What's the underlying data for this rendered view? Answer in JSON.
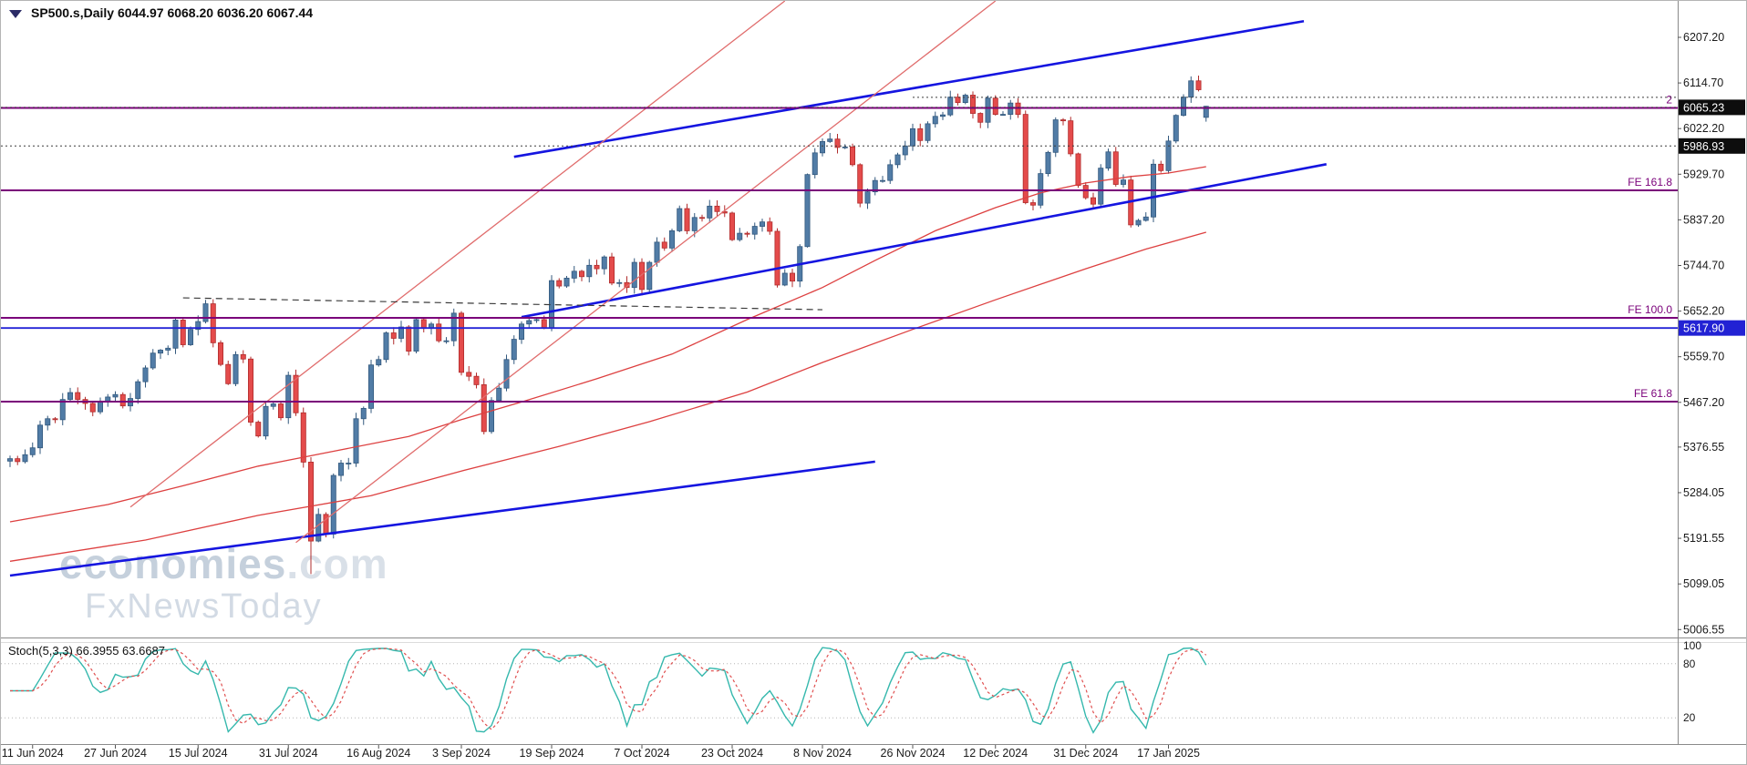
{
  "header": {
    "symbol_line": "SP500.s,Daily 6044.97 6068.20 6036.20 6067.44"
  },
  "watermark": {
    "brand": "economies",
    "brand_suffix": ".com",
    "subtitle": "FxNewsToday"
  },
  "stoch_panel": {
    "label": "Stoch(5,3,3) 66.3955 63.6687",
    "axis_labels": [
      "100",
      "80",
      "20"
    ],
    "levels": [
      80,
      20
    ]
  },
  "price_axis": {
    "labels": [
      "6207.20",
      "6114.70",
      "6022.20",
      "5929.70",
      "5837.20",
      "5744.70",
      "5652.20",
      "5559.70",
      "5467.20",
      "5376.55",
      "5284.05",
      "5191.55",
      "5099.05",
      "5006.55"
    ],
    "badges": [
      {
        "text": "6065.23",
        "bg": "#0d0d0d"
      },
      {
        "text": "5986.93",
        "bg": "#0d0d0d"
      },
      {
        "text": "5617.90",
        "bg": "#2222d4"
      }
    ]
  },
  "x_axis": {
    "date_labels": [
      {
        "text": "11 Jun 2024",
        "index": 3
      },
      {
        "text": "27 Jun 2024",
        "index": 14
      },
      {
        "text": "15 Jul 2024",
        "index": 25
      },
      {
        "text": "31 Jul 2024",
        "index": 37
      },
      {
        "text": "16 Aug 2024",
        "index": 49
      },
      {
        "text": "3 Sep 2024",
        "index": 60
      },
      {
        "text": "19 Sep 2024",
        "index": 72
      },
      {
        "text": "7 Oct 2024",
        "index": 84
      },
      {
        "text": "23 Oct 2024",
        "index": 96
      },
      {
        "text": "8 Nov 2024",
        "index": 108
      },
      {
        "text": "26 Nov 2024",
        "index": 120
      },
      {
        "text": "12 Dec 2024",
        "index": 131
      },
      {
        "text": "31 Dec 2024",
        "index": 143
      },
      {
        "text": "17 Jan 2025",
        "index": 154
      }
    ]
  },
  "chart_data": {
    "type": "candlestick",
    "symbol": "SP500.s",
    "timeframe": "Daily",
    "current_ohlc": {
      "open": 6044.97,
      "high": 6068.2,
      "low": 6036.2,
      "close": 6067.44
    },
    "first_open": 5348,
    "closes": [
      5353,
      5347,
      5361,
      5375,
      5421,
      5434,
      5432,
      5473,
      5487,
      5473,
      5465,
      5448,
      5469,
      5478,
      5483,
      5460,
      5475,
      5509,
      5537,
      5567,
      5573,
      5577,
      5634,
      5584,
      5615,
      5631,
      5667,
      5588,
      5544,
      5505,
      5564,
      5555,
      5427,
      5399,
      5459,
      5464,
      5436,
      5522,
      5446,
      5346,
      5186,
      5240,
      5200,
      5319,
      5344,
      5344,
      5434,
      5455,
      5543,
      5554,
      5608,
      5597,
      5620,
      5571,
      5635,
      5617,
      5626,
      5592,
      5592,
      5648,
      5528,
      5520,
      5503,
      5408,
      5471,
      5496,
      5554,
      5595,
      5626,
      5633,
      5635,
      5618,
      5714,
      5703,
      5719,
      5733,
      5722,
      5745,
      5738,
      5762,
      5709,
      5710,
      5700,
      5751,
      5696,
      5751,
      5792,
      5780,
      5815,
      5860,
      5815,
      5842,
      5841,
      5865,
      5854,
      5851,
      5797,
      5810,
      5808,
      5824,
      5833,
      5814,
      5705,
      5729,
      5713,
      5783,
      5929,
      5973,
      5996,
      6001,
      5984,
      5985,
      5949,
      5871,
      5894,
      5917,
      5917,
      5949,
      5969,
      5987,
      6022,
      5998,
      6032,
      6047,
      6050,
      6086,
      6075,
      6090,
      6053,
      6035,
      6084,
      6051,
      6051,
      6074,
      6051,
      5872,
      5867,
      5931,
      5974,
      6040,
      6038,
      5971,
      5907,
      5882,
      5869,
      5942,
      5975,
      5909,
      5918,
      5827,
      5836,
      5843,
      5950,
      5937,
      5997,
      6049,
      6086,
      6119,
      6101,
      6067.44
    ],
    "overrides": {
      "40": {
        "low": 5119
      },
      "157": {
        "high": 6128
      },
      "159": {
        "open": 6044.97,
        "high": 6068.2,
        "low": 6036.2,
        "close": 6067.44
      }
    },
    "trendlines": [
      {
        "name": "trendline-blue-support",
        "color": "#1515e0",
        "width": 2.6,
        "from": [
          0,
          5116
        ],
        "to": [
          115,
          5347
        ]
      },
      {
        "name": "trendline-blue-channel-lower",
        "color": "#1515e0",
        "width": 2.6,
        "from": [
          68,
          5640
        ],
        "to": [
          175,
          5950
        ]
      },
      {
        "name": "trendline-blue-channel-upper",
        "color": "#1515e0",
        "width": 2.6,
        "from": [
          67,
          5965
        ],
        "to": [
          172,
          6240
        ]
      },
      {
        "name": "trendline-red-left",
        "color": "#e06c6c",
        "width": 1.3,
        "from": [
          16,
          5255
        ],
        "to": [
          103,
          6281
        ]
      },
      {
        "name": "trendline-red-right",
        "color": "#e06c6c",
        "width": 1.3,
        "from": [
          38,
          5183
        ],
        "to": [
          131,
          6281
        ]
      },
      {
        "name": "trendline-dashed-resistance",
        "color": "#3a3a3a",
        "width": 1.2,
        "dash": "7 5",
        "from": [
          23,
          5679
        ],
        "to": [
          108,
          5655
        ]
      }
    ],
    "moving_averages": [
      {
        "name": "ma-red-fast",
        "color": "#dd4040",
        "width": 1.3,
        "points": [
          [
            0,
            5225
          ],
          [
            13,
            5260
          ],
          [
            23,
            5298
          ],
          [
            33,
            5338
          ],
          [
            43,
            5368
          ],
          [
            53,
            5398
          ],
          [
            60,
            5432
          ],
          [
            68,
            5468
          ],
          [
            78,
            5515
          ],
          [
            88,
            5565
          ],
          [
            98,
            5635
          ],
          [
            108,
            5700
          ],
          [
            115,
            5755
          ],
          [
            123,
            5815
          ],
          [
            131,
            5862
          ],
          [
            137,
            5892
          ],
          [
            143,
            5912
          ],
          [
            149,
            5925
          ],
          [
            154,
            5932
          ],
          [
            159,
            5945
          ]
        ]
      },
      {
        "name": "ma-red-slow",
        "color": "#dd4040",
        "width": 1.3,
        "points": [
          [
            0,
            5145
          ],
          [
            18,
            5188
          ],
          [
            33,
            5238
          ],
          [
            48,
            5278
          ],
          [
            60,
            5328
          ],
          [
            73,
            5378
          ],
          [
            85,
            5428
          ],
          [
            98,
            5488
          ],
          [
            108,
            5548
          ],
          [
            120,
            5615
          ],
          [
            131,
            5675
          ],
          [
            143,
            5738
          ],
          [
            151,
            5778
          ],
          [
            159,
            5812
          ]
        ]
      }
    ],
    "horizontal_levels": [
      {
        "name": "level-purple-top",
        "price": 6064,
        "color": "#7a007a",
        "width": 2,
        "label": "2"
      },
      {
        "name": "level-fe-161-8",
        "price": 5897,
        "color": "#7a007a",
        "width": 2,
        "label": "FE 161.8"
      },
      {
        "name": "level-fe-100-0",
        "price": 5638.5,
        "color": "#7a007a",
        "width": 2,
        "label": "FE 100.0"
      },
      {
        "name": "level-fe-61-8",
        "price": 5468.6,
        "color": "#7a007a",
        "width": 2,
        "label": "FE 61.8"
      },
      {
        "name": "level-blue-5617",
        "price": 5617.9,
        "color": "#2323d6",
        "width": 1.8
      },
      {
        "name": "level-dotted-6065",
        "price": 6065.23,
        "color": "#3c3c3c",
        "width": 1,
        "dash": "2 3"
      },
      {
        "name": "level-dotted-5986",
        "price": 5986.93,
        "color": "#3c3c3c",
        "width": 1,
        "dash": "2 3"
      },
      {
        "name": "level-dotted-6085",
        "price": 6085.6,
        "color": "#3c3c3c",
        "width": 1,
        "dash": "2 3",
        "from_index": 120
      }
    ],
    "stochastic": {
      "k_period": 5,
      "d_period": 3,
      "slowing": 3,
      "k_value": 66.3955,
      "d_value": 63.6687
    },
    "colors": {
      "bull": "#517ca6",
      "bull_stroke": "#33597e",
      "bear": "#e44b4b",
      "bear_stroke": "#b02c2c",
      "stoch_k": "#35b8ad",
      "stoch_d": "#e05050"
    }
  }
}
